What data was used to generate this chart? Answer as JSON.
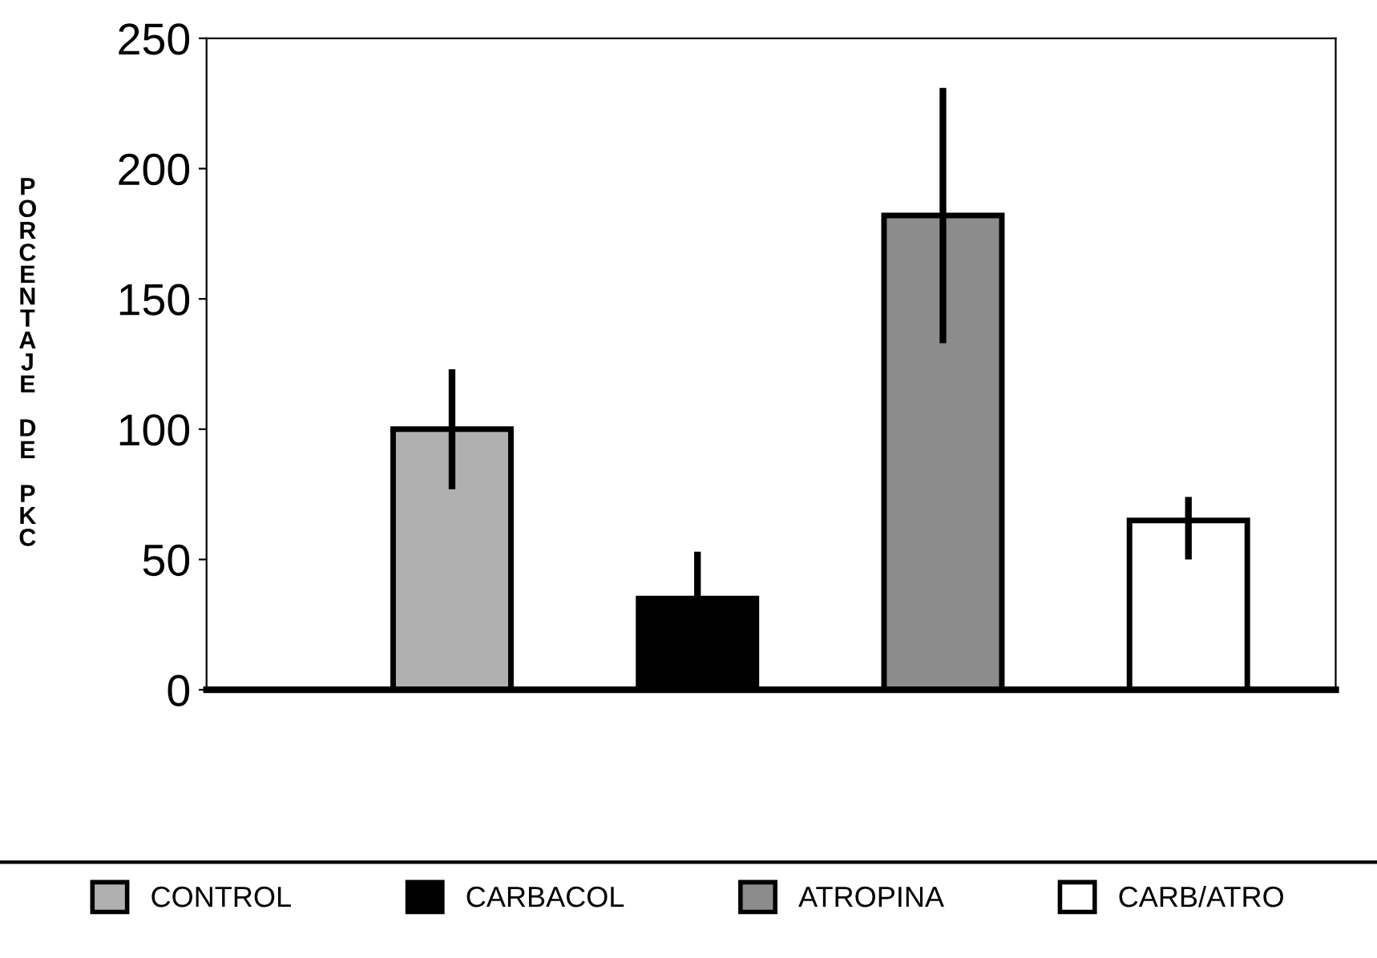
{
  "chart_data": {
    "type": "bar",
    "ylabel": "PORCENTAJE DE PKC",
    "categories": [
      null,
      null,
      null,
      null
    ],
    "series": [
      {
        "name": "CONTROL",
        "color": "#b0b0b0",
        "values": [
          100,
          null,
          null,
          null
        ],
        "errors": [
          23,
          null,
          null,
          null
        ]
      },
      {
        "name": "CARBACOL",
        "color": "#000000",
        "values": [
          null,
          35,
          null,
          null
        ],
        "errors": [
          null,
          18,
          null,
          null
        ]
      },
      {
        "name": "ATROPINA",
        "color": "#8c8c8c",
        "values": [
          null,
          null,
          182,
          null
        ],
        "errors": [
          null,
          null,
          49,
          null
        ]
      },
      {
        "name": "CARB/ATRO",
        "color": "#ffffff",
        "values": [
          null,
          null,
          null,
          65
        ],
        "errors": [
          null,
          null,
          null,
          [
            50,
            74
          ]
        ]
      }
    ],
    "ylim": [
      0,
      250
    ],
    "yticks": [
      0,
      50,
      100,
      150,
      200,
      250
    ],
    "grid": false,
    "legend": "bottom"
  }
}
